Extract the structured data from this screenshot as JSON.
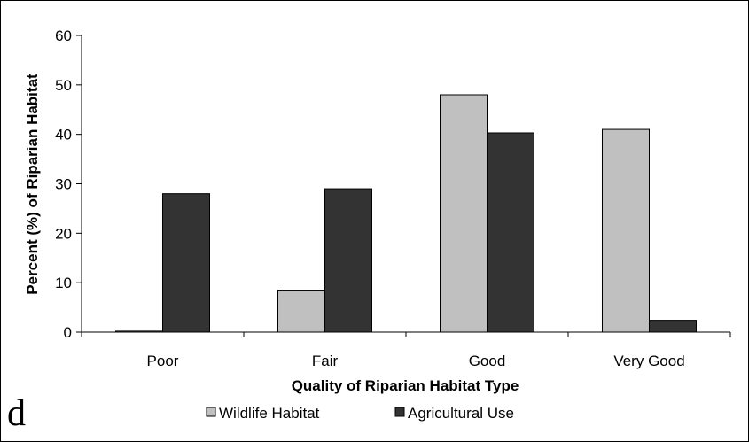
{
  "chart_data": {
    "type": "bar",
    "title": "",
    "panel_label": "d",
    "xlabel": "Quality of Riparian Habitat Type",
    "ylabel": "Percent (%) of Riparian Habitat",
    "categories": [
      "Poor",
      "Fair",
      "Good",
      "Very Good"
    ],
    "ylim": [
      0,
      60
    ],
    "yticks": [
      0,
      10,
      20,
      30,
      40,
      50,
      60
    ],
    "grid": false,
    "legend_position": "bottom",
    "series": [
      {
        "name": "Wildlife Habitat",
        "color": "#c0c0c0",
        "values": [
          0.2,
          8.5,
          48.0,
          41.0
        ]
      },
      {
        "name": "Agricultural Use",
        "color": "#333333",
        "values": [
          28.0,
          29.0,
          40.3,
          2.4
        ]
      }
    ]
  }
}
